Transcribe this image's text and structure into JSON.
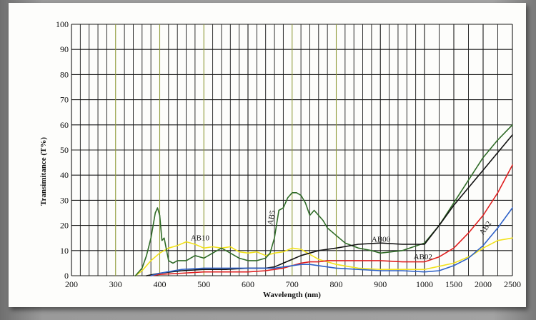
{
  "chart_data": {
    "type": "line",
    "xlabel": "Wavelength (nm)",
    "ylabel": "Transimitance (T%)",
    "ylim": [
      0,
      100
    ],
    "y_ticks": [
      0,
      10,
      20,
      30,
      40,
      50,
      60,
      70,
      80,
      90,
      100
    ],
    "x_tick_labels": [
      "200",
      "300",
      "400",
      "500",
      "600",
      "700",
      "800",
      "900",
      "1000",
      "1500",
      "2000",
      "2500"
    ],
    "x_axis_note": "linear 200–1000 nm, then compressed 1000–2500 nm",
    "grid": true,
    "series": [
      {
        "name": "AB10",
        "color": "#f2e21b",
        "x": [
          345,
          360,
          380,
          400,
          420,
          440,
          460,
          480,
          500,
          520,
          540,
          560,
          580,
          600,
          620,
          640,
          660,
          680,
          700,
          720,
          740,
          760,
          780,
          800,
          850,
          900,
          950,
          1000,
          1200,
          1500,
          1800,
          2000,
          2250,
          2500
        ],
        "y": [
          0,
          2,
          6,
          9,
          11,
          12,
          13.5,
          12.5,
          11,
          11.5,
          11,
          11.5,
          9.5,
          9,
          9.5,
          8,
          9,
          9.5,
          11,
          10.5,
          8.5,
          6.5,
          5.5,
          4.5,
          3,
          2.5,
          2.5,
          2.5,
          3.5,
          5,
          8,
          11,
          14,
          15
        ]
      },
      {
        "name": "AB5",
        "color": "#2f6b27",
        "x": [
          345,
          360,
          370,
          380,
          390,
          395,
          400,
          405,
          410,
          420,
          430,
          440,
          460,
          480,
          500,
          520,
          540,
          560,
          580,
          600,
          620,
          640,
          650,
          660,
          670,
          680,
          690,
          700,
          710,
          720,
          730,
          740,
          750,
          760,
          770,
          780,
          800,
          820,
          850,
          880,
          900,
          950,
          1000,
          1250,
          1500,
          1750,
          2000,
          2250,
          2500
        ],
        "y": [
          0,
          3,
          8,
          15,
          25,
          27,
          24,
          14,
          15,
          6,
          5,
          6,
          6,
          8,
          7,
          9,
          11,
          9,
          7,
          6,
          6,
          7,
          9,
          15,
          26,
          27,
          31,
          33,
          33,
          32,
          29,
          24,
          26,
          24,
          22,
          19,
          16,
          13,
          11,
          10,
          9,
          10,
          13,
          20,
          29,
          38,
          47,
          54,
          60
        ]
      },
      {
        "name": "AB00",
        "color": "#111111",
        "x": [
          370,
          400,
          450,
          500,
          550,
          600,
          640,
          660,
          680,
          700,
          720,
          740,
          760,
          780,
          800,
          850,
          900,
          950,
          1000,
          1250,
          1500,
          1750,
          2000,
          2250,
          2500
        ],
        "y": [
          0,
          1,
          2,
          2.5,
          2.5,
          3,
          3,
          3.5,
          5,
          6.5,
          8,
          9,
          10,
          10.5,
          11,
          12.5,
          13,
          12.5,
          12.5,
          20,
          28,
          35,
          42,
          49,
          56
        ]
      },
      {
        "name": "AB02",
        "color": "#e01f1f",
        "x": [
          380,
          400,
          450,
          500,
          550,
          600,
          640,
          660,
          680,
          700,
          720,
          740,
          760,
          780,
          800,
          850,
          900,
          950,
          1000,
          1250,
          1500,
          1750,
          2000,
          2250,
          2500
        ],
        "y": [
          0,
          0.5,
          1,
          1.5,
          1.5,
          1.5,
          2,
          2.5,
          3,
          4,
          5,
          5.5,
          5.5,
          6,
          6,
          6,
          6,
          5.5,
          5.5,
          7.5,
          11,
          17,
          24,
          33,
          44
        ]
      },
      {
        "name": "AB2",
        "color": "#2f62c8",
        "x": [
          380,
          400,
          450,
          500,
          550,
          600,
          640,
          660,
          680,
          700,
          720,
          740,
          760,
          780,
          800,
          850,
          900,
          950,
          1000,
          1250,
          1500,
          1750,
          2000,
          2250,
          2500
        ],
        "y": [
          0,
          1,
          2.5,
          3,
          3,
          3,
          3,
          3,
          3.5,
          4,
          4.5,
          4.5,
          4,
          3.5,
          3,
          2.5,
          2,
          2,
          1.5,
          2,
          4,
          7,
          12,
          19,
          27
        ]
      }
    ],
    "annotations": [
      {
        "text": "AB10",
        "x": 470,
        "y": 14,
        "rotate": 0
      },
      {
        "text": "AB5",
        "x": 655,
        "y": 20,
        "rotate": -78
      },
      {
        "text": "AB00",
        "x": 880,
        "y": 13.5,
        "rotate": 0
      },
      {
        "text": "AB02",
        "x": 975,
        "y": 6.5,
        "rotate": 0
      },
      {
        "text": "AB2",
        "x": 2000,
        "y": 16,
        "rotate": -55
      }
    ]
  }
}
